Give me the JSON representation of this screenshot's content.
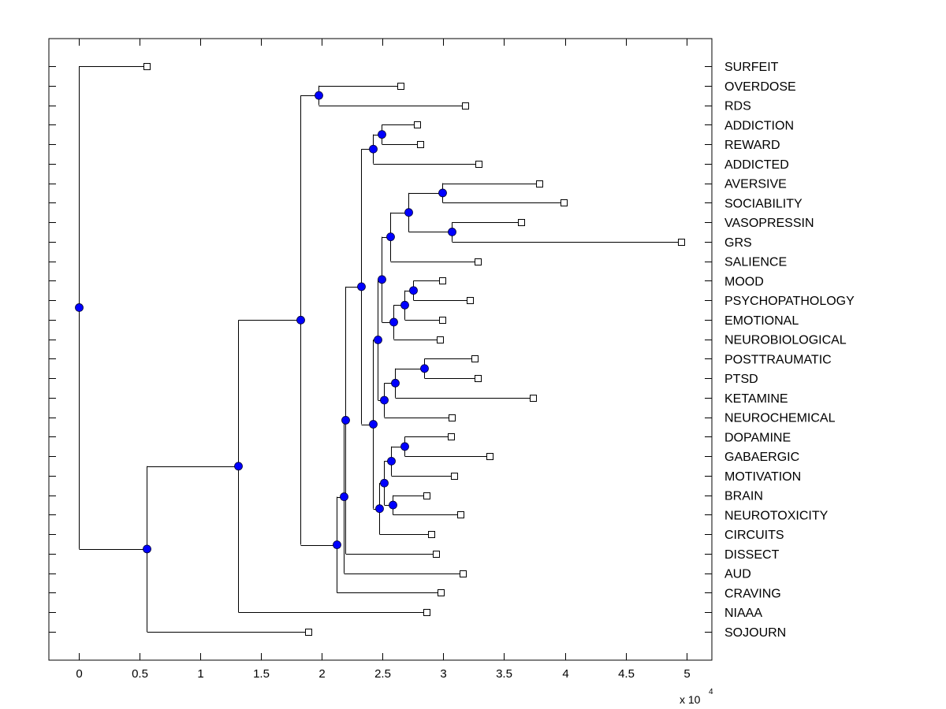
{
  "chart_data": {
    "type": "dendrogram",
    "title": "",
    "xlabel": "",
    "ylabel": "",
    "x_multiplier_label": "x 10",
    "x_multiplier_exponent": "4",
    "xlim": [
      -0.247,
      5.21
    ],
    "x_ticks": [
      0,
      0.5,
      1,
      1.5,
      2,
      2.5,
      3,
      3.5,
      4,
      4.5,
      5
    ],
    "x_tick_labels": [
      "0",
      "0.5",
      "1",
      "1.5",
      "2",
      "2.5",
      "3",
      "3.5",
      "4",
      "4.5",
      "5"
    ],
    "grid": false,
    "leaf_marker": "open-square",
    "node_marker": "filled-circle",
    "colors": {
      "node_fill": "#0000ff",
      "line": "#000000",
      "leaf_fill": "#ffffff"
    },
    "leaves": [
      {
        "label": "SURFEIT",
        "x": 0.56
      },
      {
        "label": "OVERDOSE",
        "x": 2.65
      },
      {
        "label": "RDS",
        "x": 3.18
      },
      {
        "label": "ADDICTION",
        "x": 2.78
      },
      {
        "label": "REWARD",
        "x": 2.81
      },
      {
        "label": "ADDICTED",
        "x": 3.29
      },
      {
        "label": "AVERSIVE",
        "x": 3.79
      },
      {
        "label": "SOCIABILITY",
        "x": 3.99
      },
      {
        "label": "VASOPRESSIN",
        "x": 3.64
      },
      {
        "label": "GRS",
        "x": 4.96
      },
      {
        "label": "SALIENCE",
        "x": 3.28
      },
      {
        "label": "MOOD",
        "x": 2.99
      },
      {
        "label": "PSYCHOPATHOLOGY",
        "x": 3.22
      },
      {
        "label": "EMOTIONAL",
        "x": 2.99
      },
      {
        "label": "NEUROBIOLOGICAL",
        "x": 2.97
      },
      {
        "label": "POSTTRAUMATIC",
        "x": 3.26
      },
      {
        "label": "PTSD",
        "x": 3.28
      },
      {
        "label": "KETAMINE",
        "x": 3.74
      },
      {
        "label": "NEUROCHEMICAL",
        "x": 3.07
      },
      {
        "label": "DOPAMINE",
        "x": 3.06
      },
      {
        "label": "GABAERGIC",
        "x": 3.38
      },
      {
        "label": "MOTIVATION",
        "x": 3.09
      },
      {
        "label": "BRAIN",
        "x": 2.86
      },
      {
        "label": "NEUROTOXICITY",
        "x": 3.14
      },
      {
        "label": "CIRCUITS",
        "x": 2.9
      },
      {
        "label": "DISSECT",
        "x": 2.94
      },
      {
        "label": "AUD",
        "x": 3.16
      },
      {
        "label": "CRAVING",
        "x": 2.98
      },
      {
        "label": "NIAAA",
        "x": 2.86
      },
      {
        "label": "SOJOURN",
        "x": 1.89
      }
    ],
    "nodes": [
      {
        "id": "n_overdose_rds",
        "x": 1.97,
        "children": [
          "L:OVERDOSE",
          "L:RDS"
        ]
      },
      {
        "id": "n_addiction_reward",
        "x": 2.49,
        "children": [
          "L:ADDICTION",
          "L:REWARD"
        ]
      },
      {
        "id": "n_addicted",
        "x": 2.42,
        "children": [
          "N:n_addiction_reward",
          "L:ADDICTED"
        ]
      },
      {
        "id": "n_aversive_sociability",
        "x": 2.99,
        "children": [
          "L:AVERSIVE",
          "L:SOCIABILITY"
        ]
      },
      {
        "id": "n_vasopressin_grs",
        "x": 3.07,
        "children": [
          "L:VASOPRESSIN",
          "L:GRS"
        ]
      },
      {
        "id": "n_social_block",
        "x": 2.71,
        "children": [
          "N:n_aversive_sociability",
          "N:n_vasopressin_grs"
        ]
      },
      {
        "id": "n_salience",
        "x": 2.56,
        "children": [
          "N:n_social_block",
          "L:SALIENCE"
        ]
      },
      {
        "id": "n_mood_psycho",
        "x": 2.75,
        "children": [
          "L:MOOD",
          "L:PSYCHOPATHOLOGY"
        ]
      },
      {
        "id": "n_emotional",
        "x": 2.68,
        "children": [
          "N:n_mood_psycho",
          "L:EMOTIONAL"
        ]
      },
      {
        "id": "n_neurobio",
        "x": 2.59,
        "children": [
          "N:n_emotional",
          "L:NEUROBIOLOGICAL"
        ]
      },
      {
        "id": "n_affect_block",
        "x": 2.49,
        "children": [
          "N:n_salience",
          "N:n_neurobio"
        ]
      },
      {
        "id": "n_post_ptsd",
        "x": 2.84,
        "children": [
          "L:POSTTRAUMATIC",
          "L:PTSD"
        ]
      },
      {
        "id": "n_ketamine",
        "x": 2.6,
        "children": [
          "N:n_post_ptsd",
          "L:KETAMINE"
        ]
      },
      {
        "id": "n_neurochem",
        "x": 2.51,
        "children": [
          "N:n_ketamine",
          "L:NEUROCHEMICAL"
        ]
      },
      {
        "id": "n_mid_block",
        "x": 2.46,
        "children": [
          "N:n_affect_block",
          "N:n_neurochem"
        ]
      },
      {
        "id": "n_dopa_gaba",
        "x": 2.68,
        "children": [
          "L:DOPAMINE",
          "L:GABAERGIC"
        ]
      },
      {
        "id": "n_motivation",
        "x": 2.57,
        "children": [
          "N:n_dopa_gaba",
          "L:MOTIVATION"
        ]
      },
      {
        "id": "n_brain_neurotox",
        "x": 2.58,
        "children": [
          "L:BRAIN",
          "L:NEUROTOXICITY"
        ]
      },
      {
        "id": "n_neuro_block",
        "x": 2.51,
        "children": [
          "N:n_motivation",
          "N:n_brain_neurotox"
        ]
      },
      {
        "id": "n_circuits",
        "x": 2.47,
        "children": [
          "N:n_neuro_block",
          "L:CIRCUITS"
        ]
      },
      {
        "id": "n_lower_block",
        "x": 2.42,
        "children": [
          "N:n_mid_block",
          "N:n_circuits"
        ]
      },
      {
        "id": "n_core",
        "x": 2.32,
        "children": [
          "N:n_addicted",
          "N:n_lower_block"
        ]
      },
      {
        "id": "n_dissect",
        "x": 2.19,
        "children": [
          "N:n_core",
          "L:DISSECT"
        ]
      },
      {
        "id": "n_aud",
        "x": 2.18,
        "children": [
          "N:n_dissect",
          "L:AUD"
        ]
      },
      {
        "id": "n_craving",
        "x": 2.12,
        "children": [
          "N:n_aud",
          "L:CRAVING"
        ]
      },
      {
        "id": "n_upper",
        "x": 1.82,
        "children": [
          "N:n_overdose_rds",
          "N:n_craving"
        ]
      },
      {
        "id": "n_niaaa",
        "x": 1.31,
        "children": [
          "N:n_upper",
          "L:NIAAA"
        ]
      },
      {
        "id": "n_sojourn",
        "x": 0.56,
        "children": [
          "N:n_niaaa",
          "L:SOJOURN"
        ]
      },
      {
        "id": "n_root",
        "x": 0.0,
        "children": [
          "L:SURFEIT",
          "N:n_sojourn"
        ]
      }
    ]
  }
}
